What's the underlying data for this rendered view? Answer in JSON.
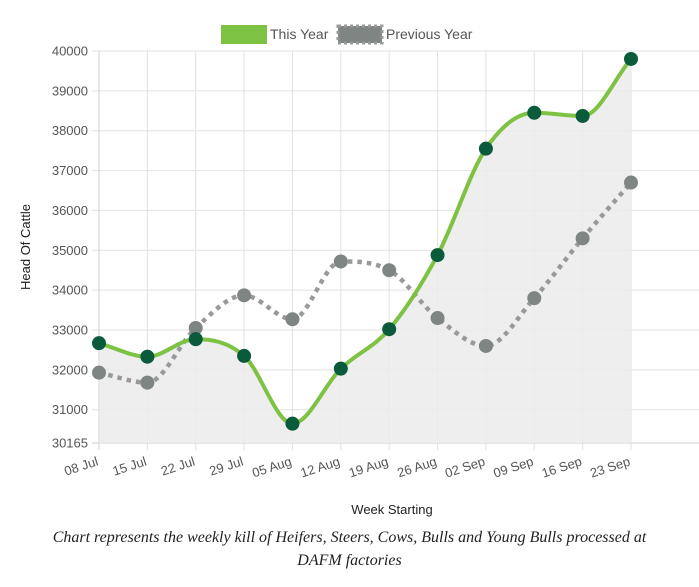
{
  "chart_data": {
    "type": "line",
    "x": [
      "08 Jul",
      "15 Jul",
      "22 Jul",
      "29 Jul",
      "05 Aug",
      "12 Aug",
      "19 Aug",
      "26 Aug",
      "02 Sep",
      "09 Sep",
      "16 Sep",
      "23 Sep"
    ],
    "series": [
      {
        "name": "This Year",
        "color": "#7dc242",
        "point_color": "#0a5a3c",
        "fill": "#ebebeb",
        "style": "solid",
        "values": [
          32670,
          32330,
          32770,
          32350,
          30650,
          32030,
          33020,
          34880,
          37550,
          38450,
          38370,
          39800
        ]
      },
      {
        "name": "Previous Year",
        "color": "#999999",
        "point_color": "#7f8582",
        "style": "dotted",
        "values": [
          31930,
          31680,
          33050,
          33870,
          33270,
          34720,
          34500,
          33300,
          32600,
          33800,
          35300,
          36700
        ]
      }
    ],
    "ylabel": "Head Of Cattle",
    "xlabel": "Week Starting",
    "ylim": [
      30165,
      40000
    ],
    "yticks": [
      "40000",
      "39000",
      "38000",
      "37000",
      "36000",
      "35000",
      "34000",
      "33000",
      "32000",
      "31000",
      "30165"
    ],
    "legend_position": "top-center",
    "grid": true
  },
  "caption": {
    "line1": "Chart represents the weekly kill of Heifers, Steers, Cows, Bulls and Young Bulls processed at",
    "line2": "DAFM factories"
  }
}
